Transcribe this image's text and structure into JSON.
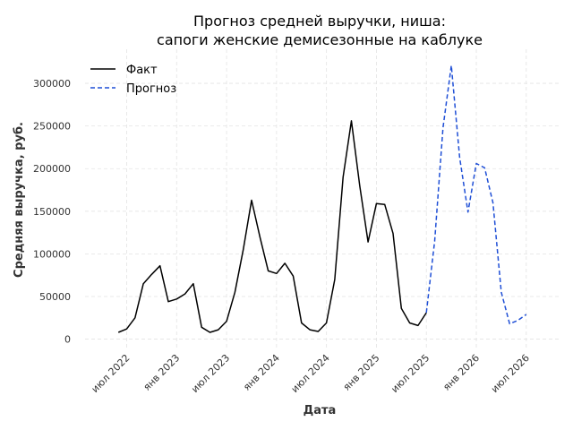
{
  "chart_data": {
    "type": "line",
    "title_lines": [
      "Прогноз средней выручки, ниша:",
      "сапоги женские демисезонные на каблуке"
    ],
    "xlabel": "Дата",
    "ylabel": "Средняя выручка, руб.",
    "x_ticks": [
      {
        "date": "2022-07",
        "label": "июл 2022"
      },
      {
        "date": "2023-01",
        "label": "янв 2023"
      },
      {
        "date": "2023-07",
        "label": "июл 2023"
      },
      {
        "date": "2024-01",
        "label": "янв 2024"
      },
      {
        "date": "2024-07",
        "label": "июл 2024"
      },
      {
        "date": "2025-01",
        "label": "янв 2025"
      },
      {
        "date": "2025-07",
        "label": "июл 2025"
      },
      {
        "date": "2026-01",
        "label": "янв 2026"
      },
      {
        "date": "2026-07",
        "label": "июл 2026"
      }
    ],
    "y_ticks": [
      {
        "value": 0,
        "label": "0"
      },
      {
        "value": 50000,
        "label": "50000"
      },
      {
        "value": 100000,
        "label": "100000"
      },
      {
        "value": 150000,
        "label": "150000"
      },
      {
        "value": 200000,
        "label": "200000"
      },
      {
        "value": 250000,
        "label": "250000"
      },
      {
        "value": 300000,
        "label": "300000"
      }
    ],
    "grid": true,
    "legend_position": "top-left",
    "series": [
      {
        "name": "Факт",
        "color": "#000000",
        "style": "solid",
        "points": [
          [
            "2022-06",
            8000
          ],
          [
            "2022-07",
            12000
          ],
          [
            "2022-08",
            25000
          ],
          [
            "2022-09",
            65000
          ],
          [
            "2022-10",
            76000
          ],
          [
            "2022-11",
            86000
          ],
          [
            "2022-12",
            44000
          ],
          [
            "2023-01",
            47000
          ],
          [
            "2023-02",
            53000
          ],
          [
            "2023-03",
            65000
          ],
          [
            "2023-04",
            14000
          ],
          [
            "2023-05",
            8000
          ],
          [
            "2023-06",
            11000
          ],
          [
            "2023-07",
            21000
          ],
          [
            "2023-08",
            55000
          ],
          [
            "2023-09",
            105000
          ],
          [
            "2023-10",
            163000
          ],
          [
            "2023-11",
            120000
          ],
          [
            "2023-12",
            80000
          ],
          [
            "2024-01",
            77000
          ],
          [
            "2024-02",
            89000
          ],
          [
            "2024-03",
            74000
          ],
          [
            "2024-04",
            19000
          ],
          [
            "2024-05",
            11000
          ],
          [
            "2024-06",
            9000
          ],
          [
            "2024-07",
            19000
          ],
          [
            "2024-08",
            70000
          ],
          [
            "2024-09",
            190000
          ],
          [
            "2024-10",
            256000
          ],
          [
            "2024-11",
            180000
          ],
          [
            "2024-12",
            114000
          ],
          [
            "2025-01",
            159000
          ],
          [
            "2025-02",
            158000
          ],
          [
            "2025-03",
            124000
          ],
          [
            "2025-04",
            36000
          ],
          [
            "2025-05",
            19000
          ],
          [
            "2025-06",
            16000
          ],
          [
            "2025-07",
            31000
          ]
        ]
      },
      {
        "name": "Прогноз",
        "color": "#1f4fd6",
        "style": "dashed",
        "points": [
          [
            "2025-07",
            31000
          ],
          [
            "2025-08",
            115000
          ],
          [
            "2025-09",
            248000
          ],
          [
            "2025-10",
            321000
          ],
          [
            "2025-11",
            213000
          ],
          [
            "2025-12",
            149000
          ],
          [
            "2026-01",
            206000
          ],
          [
            "2026-02",
            201000
          ],
          [
            "2026-03",
            160000
          ],
          [
            "2026-04",
            55000
          ],
          [
            "2026-05",
            18000
          ],
          [
            "2026-06",
            22000
          ],
          [
            "2026-07",
            29000
          ]
        ]
      }
    ]
  }
}
